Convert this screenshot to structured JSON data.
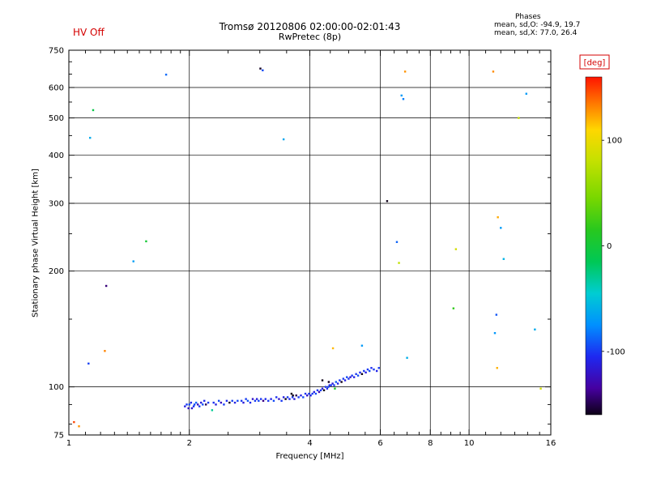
{
  "header": {
    "hv_off": "HV Off",
    "phases_title": "Phases",
    "phases_line1": "mean, sd,O: -94.9, 19.7",
    "phases_line2": "mean, sd,X: 77.0, 26.4"
  },
  "colors": {
    "accent_red": "#d40000",
    "axis": "#000000",
    "background": "#ffffff"
  },
  "chart_data": {
    "type": "scatter",
    "title": "Tromsø 20120806 02:00:00-02:01:43",
    "subtitle": "RwPretec (8p)",
    "xlabel": "Frequency [MHz]",
    "ylabel": "Stationary phase Virtual Height [km]",
    "x_scale": "log",
    "y_scale": "log",
    "xlim": [
      1,
      16
    ],
    "ylim": [
      75,
      750
    ],
    "x_major_ticks": [
      {
        "value": 1,
        "label": "1"
      },
      {
        "value": 2,
        "label": "2"
      },
      {
        "value": 4,
        "label": "4"
      },
      {
        "value": 6,
        "label": "6"
      },
      {
        "value": 8,
        "label": "8"
      },
      {
        "value": 10,
        "label": "10"
      },
      {
        "value": 16,
        "label": "16"
      }
    ],
    "x_minor_ticks": [
      1.1,
      1.2,
      1.3,
      1.4,
      1.5,
      1.6,
      1.7,
      1.8,
      1.9,
      2.5,
      3,
      3.5,
      4.5,
      5,
      5.5,
      6.5,
      7,
      7.5,
      8.5,
      9,
      9.5,
      11,
      12,
      13,
      14,
      15
    ],
    "y_major_ticks": [
      {
        "value": 750,
        "label": "750"
      },
      {
        "value": 600,
        "label": "600"
      },
      {
        "value": 500,
        "label": "500"
      },
      {
        "value": 400,
        "label": "400"
      },
      {
        "value": 300,
        "label": "300"
      },
      {
        "value": 200,
        "label": "200"
      },
      {
        "value": 100,
        "label": "100"
      },
      {
        "value": 75,
        "label": "75"
      }
    ],
    "y_minor_ticks": [
      80,
      90,
      150,
      250,
      350,
      450,
      550,
      650,
      700
    ],
    "x_gridlines": [
      2,
      4,
      6,
      8,
      10
    ],
    "y_gridlines": [
      100,
      200,
      300,
      400,
      500,
      600
    ],
    "colorbar": {
      "title": "[deg]",
      "range": [
        -160,
        160
      ],
      "ticks": [
        {
          "value": 100,
          "label": "100"
        },
        {
          "value": 0,
          "label": "0"
        },
        {
          "value": -100,
          "label": "-100"
        }
      ],
      "stops": [
        [
          -160,
          "#0d0016"
        ],
        [
          -135,
          "#4600a0"
        ],
        [
          -105,
          "#1e28f0"
        ],
        [
          -75,
          "#0090ff"
        ],
        [
          -45,
          "#00cdd2"
        ],
        [
          -15,
          "#00c855"
        ],
        [
          15,
          "#28c81e"
        ],
        [
          45,
          "#78d700"
        ],
        [
          80,
          "#c3e100"
        ],
        [
          110,
          "#ffd700"
        ],
        [
          135,
          "#ff7800"
        ],
        [
          160,
          "#ff1400"
        ]
      ]
    },
    "trace_points": [
      [
        1.95,
        89,
        -110
      ],
      [
        1.97,
        90,
        -100
      ],
      [
        1.99,
        88,
        -120
      ],
      [
        2.0,
        90,
        -95
      ],
      [
        2.02,
        91,
        -105
      ],
      [
        2.03,
        88,
        -118
      ],
      [
        2.05,
        89,
        -102
      ],
      [
        2.06,
        90,
        -96
      ],
      [
        2.08,
        91,
        -88
      ],
      [
        2.1,
        90,
        -128
      ],
      [
        2.12,
        89,
        -100
      ],
      [
        2.14,
        91,
        -112
      ],
      [
        2.16,
        90,
        -94
      ],
      [
        2.18,
        92,
        -106
      ],
      [
        2.2,
        90,
        -148
      ],
      [
        2.23,
        91,
        -100
      ],
      [
        2.3,
        91,
        -102
      ],
      [
        2.33,
        90,
        -112
      ],
      [
        2.37,
        92,
        -95
      ],
      [
        2.4,
        91,
        -122
      ],
      [
        2.44,
        90,
        -100
      ],
      [
        2.48,
        92,
        -104
      ],
      [
        2.52,
        91,
        -162
      ],
      [
        2.56,
        92,
        -98
      ],
      [
        2.6,
        91,
        -110
      ],
      [
        2.64,
        92,
        -95
      ],
      [
        2.7,
        92,
        -100
      ],
      [
        2.73,
        91,
        -114
      ],
      [
        2.77,
        93,
        -99
      ],
      [
        2.8,
        92,
        -90
      ],
      [
        2.84,
        91,
        -106
      ],
      [
        2.88,
        93,
        -120
      ],
      [
        2.92,
        92,
        -100
      ],
      [
        2.95,
        93,
        -111
      ],
      [
        2.98,
        92,
        -96
      ],
      [
        3.02,
        93,
        -101
      ],
      [
        3.06,
        92,
        -140
      ],
      [
        3.1,
        93,
        -104
      ],
      [
        3.15,
        92,
        -100
      ],
      [
        3.2,
        93,
        -109
      ],
      [
        3.25,
        92,
        -95
      ],
      [
        3.3,
        94,
        -102
      ],
      [
        3.35,
        93,
        -121
      ],
      [
        3.4,
        92,
        -100
      ],
      [
        3.44,
        94,
        -111
      ],
      [
        3.48,
        93,
        -170
      ],
      [
        3.52,
        94,
        -99
      ],
      [
        3.56,
        93,
        -106
      ],
      [
        3.62,
        94,
        -100
      ],
      [
        3.66,
        93,
        -114
      ],
      [
        3.7,
        95,
        -150
      ],
      [
        3.75,
        94,
        -100
      ],
      [
        3.8,
        95,
        -110
      ],
      [
        3.85,
        94,
        -95
      ],
      [
        3.9,
        96,
        -102
      ],
      [
        3.94,
        95,
        -119
      ],
      [
        3.98,
        96,
        -100
      ],
      [
        4.02,
        95,
        -105
      ],
      [
        4.06,
        96,
        -100
      ],
      [
        4.1,
        97,
        -110
      ],
      [
        4.14,
        96,
        -95
      ],
      [
        4.18,
        98,
        -101
      ],
      [
        4.22,
        97,
        -129
      ],
      [
        4.26,
        98,
        -100
      ],
      [
        4.3,
        99,
        -112
      ],
      [
        4.34,
        98,
        -168
      ],
      [
        4.38,
        100,
        -100
      ],
      [
        4.42,
        99,
        -106
      ],
      [
        4.45,
        100,
        -95
      ],
      [
        4.48,
        101,
        -110
      ],
      [
        4.52,
        101,
        -100
      ],
      [
        4.56,
        102,
        -114
      ],
      [
        4.6,
        101,
        -99
      ],
      [
        4.65,
        103,
        -90
      ],
      [
        4.7,
        102,
        -110
      ],
      [
        4.75,
        104,
        -100
      ],
      [
        4.8,
        103,
        -158
      ],
      [
        4.85,
        105,
        -100
      ],
      [
        4.9,
        104,
        -111
      ],
      [
        4.95,
        106,
        -95
      ],
      [
        5.0,
        105,
        -102
      ],
      [
        5.05,
        106,
        -120
      ],
      [
        5.1,
        107,
        -100
      ],
      [
        5.16,
        106,
        -110
      ],
      [
        5.22,
        108,
        -100
      ],
      [
        5.28,
        107,
        -95
      ],
      [
        5.34,
        109,
        -105
      ],
      [
        5.4,
        108,
        -168
      ],
      [
        5.46,
        110,
        -100
      ],
      [
        5.52,
        109,
        -112
      ],
      [
        5.58,
        111,
        -100
      ],
      [
        5.64,
        110,
        -95
      ],
      [
        5.7,
        112,
        -104
      ],
      [
        5.78,
        111,
        -100
      ],
      [
        5.88,
        110,
        -108
      ],
      [
        5.95,
        112,
        -100
      ],
      [
        4.3,
        104,
        -165
      ],
      [
        4.46,
        103,
        -158
      ],
      [
        3.6,
        96,
        -172
      ],
      [
        3.63,
        95,
        -160
      ],
      [
        2.28,
        87,
        -30
      ],
      [
        4.62,
        99,
        5
      ]
    ],
    "scatter_points": [
      [
        1.03,
        81,
        148
      ],
      [
        1.06,
        79,
        128
      ],
      [
        1.12,
        115,
        -98
      ],
      [
        1.13,
        444,
        -62
      ],
      [
        1.15,
        524,
        -8
      ],
      [
        1.23,
        124,
        132
      ],
      [
        1.24,
        183,
        -142
      ],
      [
        1.45,
        212,
        -68
      ],
      [
        1.56,
        239,
        2
      ],
      [
        1.75,
        648,
        -86
      ],
      [
        3.01,
        672,
        -158
      ],
      [
        3.05,
        665,
        -95
      ],
      [
        3.44,
        440,
        -64
      ],
      [
        4.57,
        126,
        118
      ],
      [
        5.4,
        128,
        -70
      ],
      [
        6.24,
        304,
        -172
      ],
      [
        6.6,
        238,
        -88
      ],
      [
        6.68,
        210,
        78
      ],
      [
        6.78,
        572,
        -70
      ],
      [
        6.85,
        560,
        -80
      ],
      [
        6.92,
        660,
        128
      ],
      [
        7.0,
        119,
        -60
      ],
      [
        9.27,
        228,
        88
      ],
      [
        9.14,
        160,
        18
      ],
      [
        11.49,
        660,
        130
      ],
      [
        11.8,
        276,
        122
      ],
      [
        12.0,
        259,
        -70
      ],
      [
        12.2,
        215,
        -58
      ],
      [
        11.7,
        154,
        -92
      ],
      [
        11.6,
        138,
        -72
      ],
      [
        11.75,
        112,
        120
      ],
      [
        13.3,
        500,
        82
      ],
      [
        13.9,
        578,
        -70
      ],
      [
        14.6,
        141,
        -62
      ],
      [
        15.1,
        99,
        88
      ]
    ]
  }
}
